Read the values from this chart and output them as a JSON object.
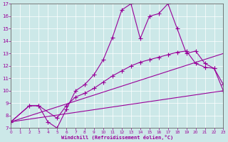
{
  "xlabel": "Windchill (Refroidissement éolien,°C)",
  "bg_color": "#cce8e8",
  "line_color": "#990099",
  "xlim": [
    0,
    23
  ],
  "ylim": [
    7,
    17
  ],
  "yticks": [
    7,
    8,
    9,
    10,
    11,
    12,
    13,
    14,
    15,
    16,
    17
  ],
  "xticks": [
    0,
    1,
    2,
    3,
    4,
    5,
    6,
    7,
    8,
    9,
    10,
    11,
    12,
    13,
    14,
    15,
    16,
    17,
    18,
    19,
    20,
    21,
    22,
    23
  ],
  "curve1_x": [
    0,
    2,
    3,
    4,
    5,
    6,
    7,
    8,
    9,
    10,
    11,
    12,
    13,
    14,
    15,
    16,
    17,
    18,
    19,
    20,
    21,
    22,
    23
  ],
  "curve1_y": [
    7.5,
    8.8,
    8.8,
    7.5,
    7.0,
    8.5,
    10.0,
    10.5,
    11.3,
    12.5,
    14.3,
    16.5,
    17.0,
    14.2,
    16.0,
    16.2,
    17.0,
    15.0,
    13.0,
    13.2,
    12.2,
    11.8,
    10.5
  ],
  "curve2_x": [
    0,
    2,
    3,
    5,
    6,
    7,
    8,
    9,
    10,
    11,
    12,
    13,
    14,
    15,
    16,
    17,
    18,
    19,
    20,
    21,
    22,
    23
  ],
  "curve2_y": [
    7.5,
    8.8,
    8.8,
    7.8,
    8.8,
    9.5,
    9.8,
    10.2,
    10.7,
    11.2,
    11.6,
    12.0,
    12.3,
    12.5,
    12.7,
    12.9,
    13.1,
    13.2,
    12.2,
    11.9,
    11.8,
    10.0
  ],
  "curve3_x": [
    0,
    23
  ],
  "curve3_y": [
    7.5,
    13.0
  ],
  "curve4_x": [
    0,
    23
  ],
  "curve4_y": [
    7.5,
    10.0
  ]
}
